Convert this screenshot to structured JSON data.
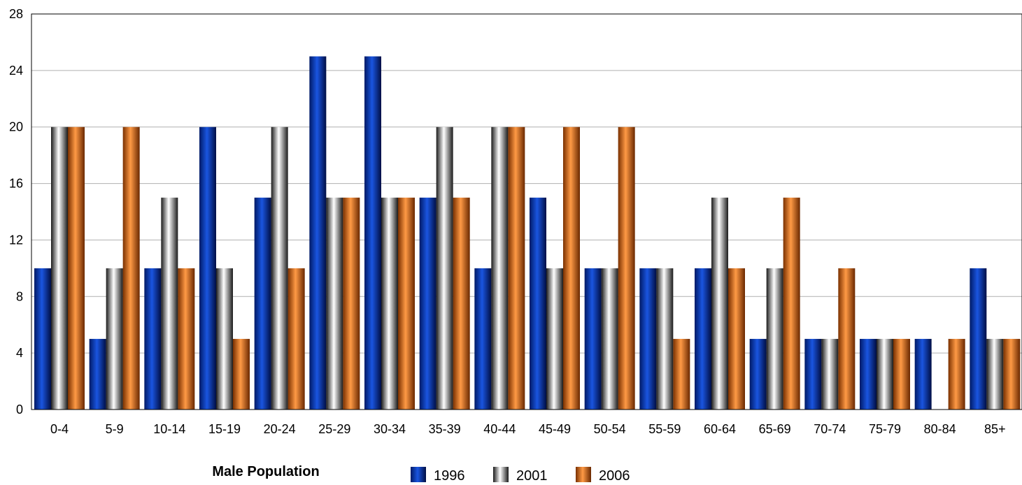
{
  "chart_data": {
    "type": "bar",
    "title": "Male Population",
    "xlabel": "",
    "ylabel": "",
    "ylim": [
      0,
      28
    ],
    "yticks": [
      "0",
      "4",
      "8",
      "12",
      "16",
      "20",
      "24",
      "28"
    ],
    "grid": true,
    "legend_position": "bottom",
    "categories": [
      "0-4",
      "5-9",
      "10-14",
      "15-19",
      "20-24",
      "25-29",
      "30-34",
      "35-39",
      "40-44",
      "45-49",
      "50-54",
      "55-59",
      "60-64",
      "65-69",
      "70-74",
      "75-79",
      "80-84",
      "85+"
    ],
    "series": [
      {
        "name": "1996",
        "color": "#0033aa",
        "values": [
          10,
          5,
          10,
          20,
          15,
          25,
          25,
          15,
          10,
          15,
          10,
          10,
          10,
          5,
          5,
          5,
          5,
          10
        ]
      },
      {
        "name": "2001",
        "color": "#888888",
        "values": [
          20,
          10,
          15,
          10,
          20,
          15,
          15,
          20,
          20,
          10,
          10,
          10,
          15,
          10,
          5,
          5,
          0,
          5
        ]
      },
      {
        "name": "2006",
        "color": "#e07020",
        "values": [
          20,
          20,
          10,
          5,
          10,
          15,
          15,
          15,
          20,
          20,
          20,
          5,
          10,
          15,
          10,
          5,
          5,
          5
        ]
      }
    ]
  }
}
